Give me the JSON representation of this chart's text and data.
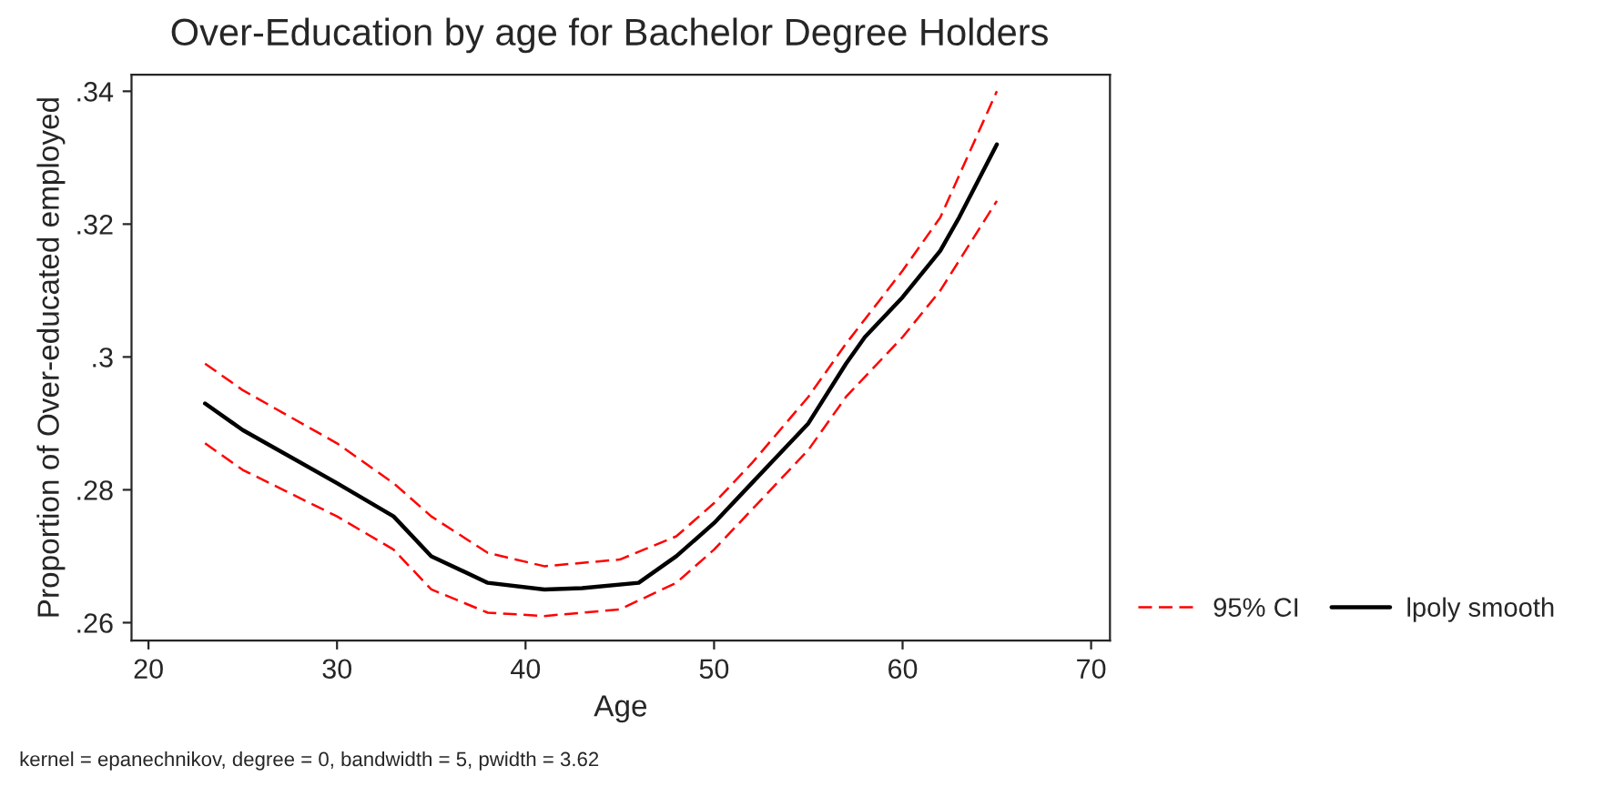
{
  "chart_data": {
    "type": "line",
    "title": "Over-Education by age for Bachelor Degree Holders",
    "xlabel": "Age",
    "ylabel": "Proportion of Over-educated employed",
    "annotations": [
      "kernel = epanechnikov, degree = 0, bandwidth = 5, pwidth = 3.62"
    ],
    "series": [
      {
        "name": "95% CI",
        "color": "#ff0000",
        "line_style": "dashed",
        "x": [
          23,
          25,
          30,
          33,
          35,
          38,
          41,
          45,
          48,
          50,
          52,
          55,
          57,
          60,
          62,
          65
        ],
        "values": [
          0.299,
          0.295,
          0.287,
          0.281,
          0.276,
          0.2705,
          0.2685,
          0.2695,
          0.273,
          0.278,
          0.284,
          0.294,
          0.302,
          0.313,
          0.321,
          0.34
        ]
      },
      {
        "color": "#ff0000",
        "line_style": "dashed",
        "x": [
          23,
          25,
          30,
          33,
          35,
          38,
          41,
          45,
          48,
          50,
          52,
          55,
          57,
          60,
          62,
          65
        ],
        "values": [
          0.287,
          0.283,
          0.276,
          0.271,
          0.265,
          0.2615,
          0.261,
          0.262,
          0.266,
          0.271,
          0.277,
          0.286,
          0.294,
          0.303,
          0.31,
          0.3235
        ]
      },
      {
        "name": "lpoly smooth",
        "color": "#000000",
        "line_style": "solid",
        "x": [
          23,
          25,
          30,
          33,
          35,
          38,
          41,
          43,
          46,
          48,
          50,
          52,
          55,
          57,
          58,
          60,
          62,
          63,
          65
        ],
        "values": [
          0.293,
          0.289,
          0.281,
          0.276,
          0.27,
          0.266,
          0.265,
          0.2652,
          0.266,
          0.27,
          0.275,
          0.281,
          0.29,
          0.299,
          0.303,
          0.309,
          0.316,
          0.321,
          0.332
        ]
      }
    ],
    "xlim": [
      19.1,
      71
    ],
    "xticks": [
      20,
      30,
      40,
      50,
      60,
      70
    ],
    "ylim": [
      0.2573,
      0.3425
    ],
    "yticks": [
      {
        "value": 0.26,
        "label": ".26"
      },
      {
        "value": 0.28,
        "label": ".28"
      },
      {
        "value": 0.3,
        "label": ".3"
      },
      {
        "value": 0.32,
        "label": ".32"
      },
      {
        "value": 0.34,
        "label": ".34"
      }
    ],
    "grid": false,
    "legend": "right"
  }
}
